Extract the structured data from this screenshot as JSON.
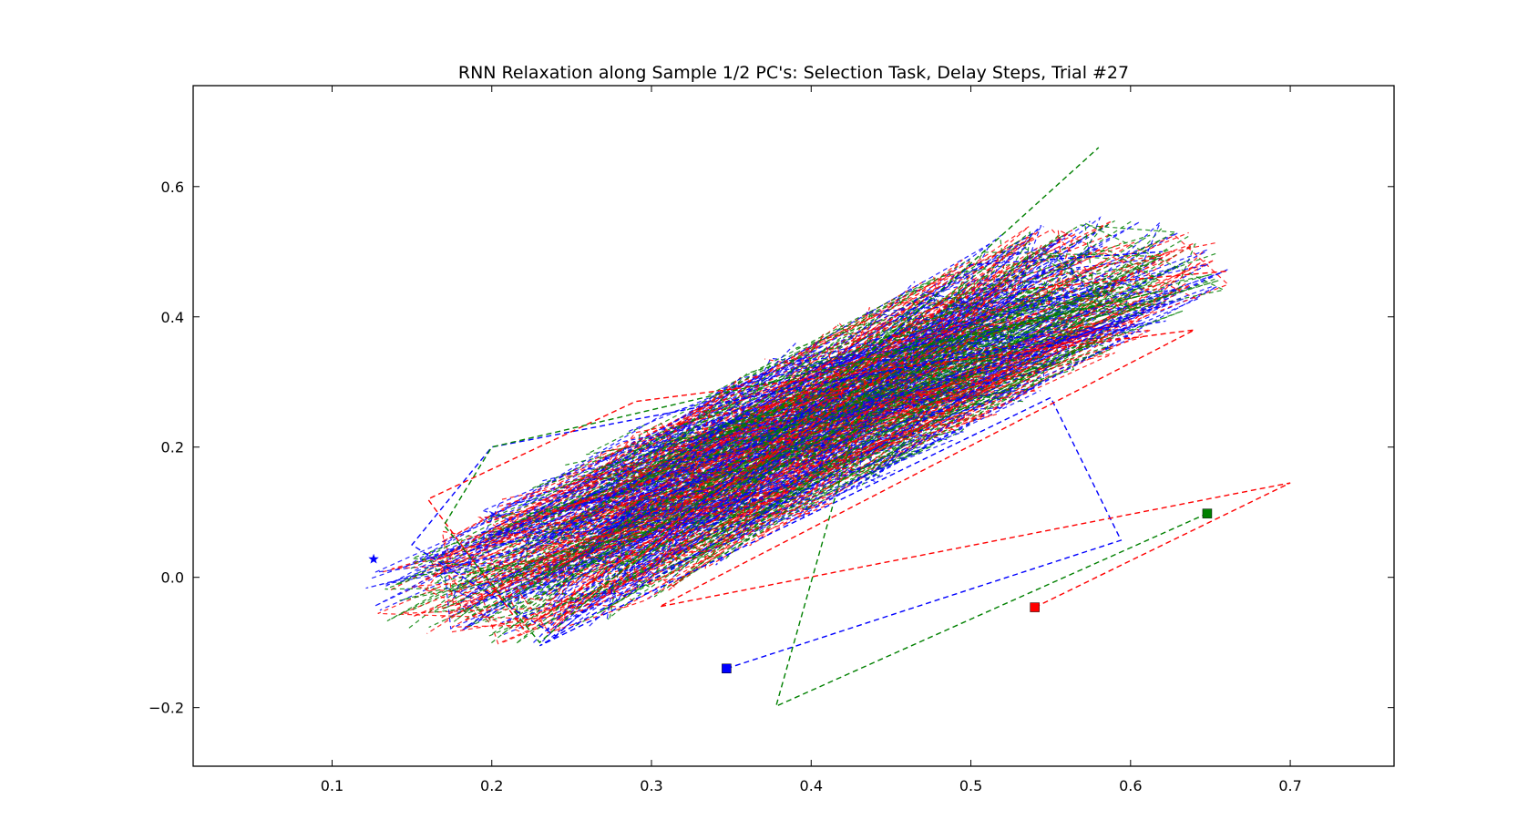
{
  "chart_data": {
    "type": "line",
    "title": "RNN Relaxation along Sample 1/2 PC's: Selection Task, Delay Steps, Trial #27",
    "xlabel": "",
    "ylabel": "",
    "xlim": [
      0.013,
      0.765
    ],
    "ylim": [
      -0.29,
      0.755
    ],
    "xticks": [
      0.1,
      0.2,
      0.3,
      0.4,
      0.5,
      0.6,
      0.7
    ],
    "xtick_labels": [
      "0.1",
      "0.2",
      "0.3",
      "0.4",
      "0.5",
      "0.6",
      "0.7"
    ],
    "yticks": [
      -0.2,
      0.0,
      0.2,
      0.4,
      0.6
    ],
    "ytick_labels": [
      "−0.2",
      "0.0",
      "0.2",
      "0.4",
      "0.6"
    ],
    "grid": false,
    "legend": "none",
    "line_style": "dashed",
    "series_colors": [
      "#0000ff",
      "#ff0000",
      "#008000"
    ],
    "series": [
      {
        "color": "#0000ff",
        "values": [
          [
            0.347,
            -0.14
          ],
          [
            0.594,
            0.057
          ],
          [
            0.55,
            0.276
          ],
          [
            0.23,
            -0.105
          ],
          [
            0.56,
            0.37
          ],
          [
            0.2,
            0.2
          ],
          [
            0.15,
            0.05
          ],
          [
            0.24,
            -0.09
          ],
          [
            0.5,
            0.48
          ],
          [
            0.62,
            0.5
          ]
        ]
      },
      {
        "color": "#ff0000",
        "values": [
          [
            0.54,
            -0.046
          ],
          [
            0.7,
            0.145
          ],
          [
            0.305,
            -0.045
          ],
          [
            0.64,
            0.38
          ],
          [
            0.29,
            0.27
          ],
          [
            0.16,
            0.12
          ],
          [
            0.22,
            -0.08
          ],
          [
            0.52,
            0.44
          ],
          [
            0.66,
            0.47
          ]
        ]
      },
      {
        "color": "#008000",
        "values": [
          [
            0.648,
            0.098
          ],
          [
            0.378,
            -0.198
          ],
          [
            0.44,
            0.34
          ],
          [
            0.62,
            0.44
          ],
          [
            0.2,
            0.2
          ],
          [
            0.17,
            0.08
          ],
          [
            0.23,
            -0.1
          ],
          [
            0.49,
            0.46
          ],
          [
            0.58,
            0.66
          ]
        ]
      }
    ],
    "markers": [
      {
        "series": 0,
        "shape": "square",
        "x": 0.347,
        "y": -0.14
      },
      {
        "series": 1,
        "shape": "square",
        "x": 0.54,
        "y": -0.046
      },
      {
        "series": 2,
        "shape": "square",
        "x": 0.648,
        "y": 0.098
      },
      {
        "series": 0,
        "shape": "star",
        "x": 0.126,
        "y": 0.028
      }
    ]
  }
}
